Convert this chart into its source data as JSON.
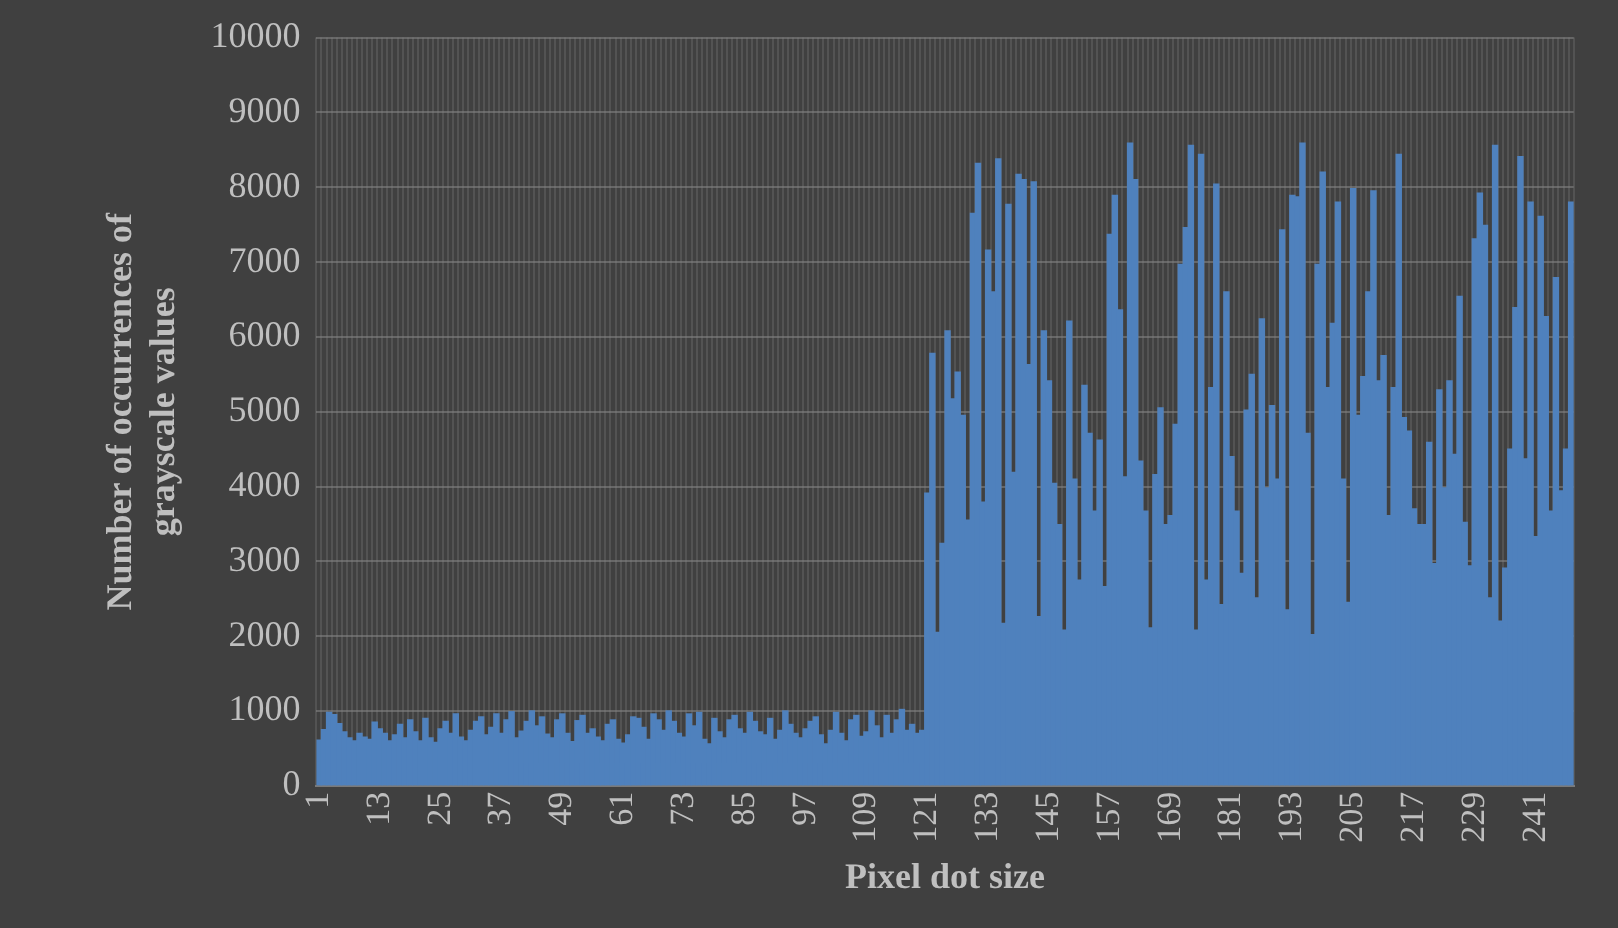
{
  "chart_data": {
    "type": "bar",
    "xlabel": "Pixel dot size",
    "ylabel": "Number of occurrences of grayscale values",
    "categories": [
      "1",
      null,
      null,
      null,
      null,
      null,
      null,
      null,
      null,
      null,
      null,
      null,
      "13",
      null,
      null,
      null,
      null,
      null,
      null,
      null,
      null,
      null,
      null,
      null,
      "25",
      null,
      null,
      null,
      null,
      null,
      null,
      null,
      null,
      null,
      null,
      null,
      "37",
      null,
      null,
      null,
      null,
      null,
      null,
      null,
      null,
      null,
      null,
      null,
      "49",
      null,
      null,
      null,
      null,
      null,
      null,
      null,
      null,
      null,
      null,
      null,
      "61",
      null,
      null,
      null,
      null,
      null,
      null,
      null,
      null,
      null,
      null,
      null,
      "73",
      null,
      null,
      null,
      null,
      null,
      null,
      null,
      null,
      null,
      null,
      null,
      "85",
      null,
      null,
      null,
      null,
      null,
      null,
      null,
      null,
      null,
      null,
      null,
      "97",
      null,
      null,
      null,
      null,
      null,
      null,
      null,
      null,
      null,
      null,
      null,
      "109",
      null,
      null,
      null,
      null,
      null,
      null,
      null,
      null,
      null,
      null,
      null,
      "121",
      null,
      null,
      null,
      null,
      null,
      null,
      null,
      null,
      null,
      null,
      null,
      "133",
      null,
      null,
      null,
      null,
      null,
      null,
      null,
      null,
      null,
      null,
      null,
      "145",
      null,
      null,
      null,
      null,
      null,
      null,
      null,
      null,
      null,
      null,
      null,
      "157",
      null,
      null,
      null,
      null,
      null,
      null,
      null,
      null,
      null,
      null,
      null,
      "169",
      null,
      null,
      null,
      null,
      null,
      null,
      null,
      null,
      null,
      null,
      null,
      "181",
      null,
      null,
      null,
      null,
      null,
      null,
      null,
      null,
      null,
      null,
      null,
      "193",
      null,
      null,
      null,
      null,
      null,
      null,
      null,
      null,
      null,
      null,
      null,
      "205",
      null,
      null,
      null,
      null,
      null,
      null,
      null,
      null,
      null,
      null,
      null,
      "217",
      null,
      null,
      null,
      null,
      null,
      null,
      null,
      null,
      null,
      null,
      null,
      "229",
      null,
      null,
      null,
      null,
      null,
      null,
      null,
      null,
      null,
      null,
      null,
      "241",
      null,
      null,
      null,
      null,
      null,
      null,
      null
    ],
    "values": [
      610,
      750,
      980,
      950,
      830,
      720,
      640,
      600,
      700,
      650,
      620,
      850,
      760,
      700,
      600,
      680,
      820,
      640,
      880,
      720,
      600,
      900,
      640,
      580,
      760,
      860,
      700,
      960,
      650,
      600,
      740,
      860,
      920,
      680,
      780,
      960,
      700,
      880,
      990,
      640,
      730,
      860,
      1000,
      800,
      920,
      690,
      640,
      880,
      960,
      700,
      590,
      870,
      940,
      700,
      760,
      650,
      600,
      820,
      880,
      620,
      570,
      680,
      920,
      900,
      780,
      620,
      960,
      880,
      740,
      1000,
      860,
      700,
      650,
      960,
      800,
      980,
      620,
      560,
      900,
      720,
      640,
      880,
      940,
      760,
      700,
      980,
      860,
      720,
      680,
      900,
      620,
      740,
      1000,
      820,
      700,
      640,
      760,
      860,
      920,
      680,
      560,
      740,
      980,
      700,
      600,
      880,
      940,
      660,
      720,
      1000,
      800,
      640,
      940,
      700,
      880,
      1020,
      740,
      820,
      700,
      740,
      3910,
      5780,
      2050,
      3240,
      6080,
      5170,
      5530,
      4950,
      3550,
      7650,
      8320,
      3790,
      7160,
      6600,
      8380,
      2170,
      7770,
      4190,
      8170,
      8100,
      5630,
      8070,
      2260,
      6080,
      5410,
      4040,
      3490,
      2080,
      6210,
      4100,
      2750,
      5350,
      4710,
      3670,
      4620,
      2660,
      7370,
      7890,
      6360,
      4130,
      8590,
      8100,
      4340,
      3670,
      2110,
      4160,
      5050,
      3490,
      3610,
      4830,
      6970,
      7460,
      8560,
      2080,
      8440,
      2750,
      5320,
      8040,
      2420,
      6600,
      4400,
      3670,
      2840,
      5020,
      5500,
      2510,
      6240,
      3980,
      5080,
      4100,
      7430,
      2350,
      7890,
      7870,
      8590,
      4710,
      2020,
      6970,
      8200,
      5320,
      6180,
      7800,
      4100,
      2450,
      7980,
      4950,
      5470,
      6600,
      7950,
      5410,
      5750,
      3610,
      5320,
      8440,
      4920,
      4740,
      3700,
      3490,
      3490,
      4590,
      2970,
      5290,
      3980,
      5410,
      4430,
      6540,
      3520,
      2940,
      7310,
      7920,
      7490,
      2510,
      8560,
      2200,
      2910,
      4500,
      6390,
      8410,
      4370,
      7800,
      3330,
      7610,
      6270,
      3670,
      6790,
      3940,
      4500,
      7800
    ],
    "color": "#4f81bd",
    "ylim": [
      0,
      10000
    ],
    "yticks": [
      0,
      1000,
      2000,
      3000,
      4000,
      5000,
      6000,
      7000,
      8000,
      9000,
      10000
    ],
    "grid": true,
    "legend": false
  }
}
